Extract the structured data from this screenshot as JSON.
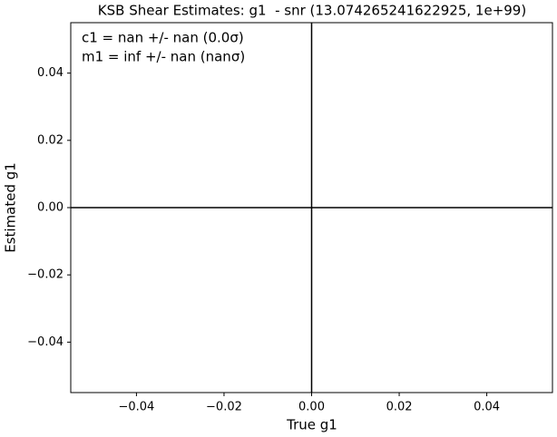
{
  "chart_data": {
    "type": "scatter",
    "title": "KSB Shear Estimates: g1  - snr (13.074265241622925, 1e+99)",
    "xlabel": "True g1",
    "ylabel": "Estimated g1",
    "annotations": [
      "c1 = nan +/- nan (0.0σ)",
      "m1 = inf +/- nan (nanσ)"
    ],
    "hlines": [
      0
    ],
    "vlines": [
      0
    ],
    "line_color": "#000000",
    "xlim": [
      -0.055,
      0.055
    ],
    "ylim": [
      -0.055,
      0.055
    ],
    "xticks": [
      {
        "value": -0.04,
        "label": "−0.04"
      },
      {
        "value": -0.02,
        "label": "−0.02"
      },
      {
        "value": 0,
        "label": "0.00"
      },
      0.02,
      0.04
    ],
    "yticks": [
      {
        "value": -0.04,
        "label": "−0.04"
      },
      {
        "value": -0.02,
        "label": "−0.02"
      },
      {
        "value": 0,
        "label": "0.00"
      },
      0.02,
      0.04
    ]
  }
}
